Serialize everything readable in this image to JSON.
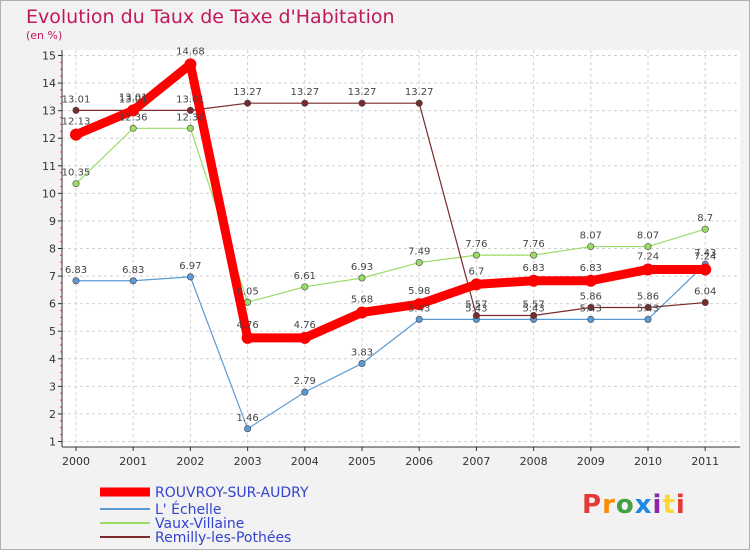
{
  "header": {
    "title": "Evolution du Taux de Taxe d'Habitation",
    "subtitle": "(en %)"
  },
  "logo": {
    "text": "Proxiti",
    "colors": [
      "#e53935",
      "#fb8c00",
      "#43a047",
      "#1e88e5",
      "#8e24aa",
      "#fdd835",
      "#e53935"
    ]
  },
  "colors": {
    "grid": "#d0d0d0",
    "title": "#c2185b",
    "legend_text": "#3344cc"
  },
  "chart_data": {
    "type": "line",
    "title": "Evolution du Taux de Taxe d'Habitation",
    "ylabel": "(en %)",
    "xlabel": "",
    "categories": [
      "2000",
      "2001",
      "2002",
      "2003",
      "2004",
      "2005",
      "2006",
      "2007",
      "2008",
      "2009",
      "2010",
      "2011"
    ],
    "yticks": [
      1,
      2,
      3,
      4,
      5,
      6,
      7,
      8,
      9,
      10,
      11,
      12,
      13,
      14,
      15
    ],
    "ylim": [
      0.8,
      15.2
    ],
    "grid": true,
    "legend_position": "bottom-left",
    "series": [
      {
        "name": "ROUVROY-SUR-AUDRY",
        "color": "#ff0000",
        "values": [
          12.13,
          13.01,
          14.68,
          4.76,
          4.76,
          5.68,
          5.98,
          6.7,
          6.83,
          6.83,
          7.24,
          7.24
        ],
        "labels": [
          "12.13",
          "13.01",
          "14.68",
          "4.76",
          "4.76",
          "5.68",
          "5.98",
          "6.7",
          "6.83",
          "6.83",
          "7.24",
          "7.24"
        ]
      },
      {
        "name": "L' Échelle",
        "color": "#5b9bd5",
        "values": [
          6.83,
          6.83,
          6.97,
          1.46,
          2.79,
          3.83,
          5.43,
          5.43,
          5.43,
          5.43,
          5.43,
          7.43
        ],
        "labels": [
          "6.83",
          "6.83",
          "6.97",
          "1.46",
          "2.79",
          "3.83",
          "5.43",
          "5.43",
          "5.43",
          "5.43",
          "5.43",
          "7.43"
        ]
      },
      {
        "name": "Vaux-Villaine",
        "color": "#99dd66",
        "values": [
          10.35,
          12.36,
          12.36,
          6.05,
          6.61,
          6.93,
          7.49,
          7.76,
          7.76,
          8.07,
          8.07,
          8.7
        ],
        "labels": [
          "10.35",
          "12.36",
          "12.36",
          "6.05",
          "6.61",
          "6.93",
          "7.49",
          "7.76",
          "7.76",
          "8.07",
          "8.07",
          "8.7"
        ]
      },
      {
        "name": "Remilly-les-Pothées",
        "color": "#7a2a2a",
        "values": [
          13.01,
          13.01,
          13.01,
          13.27,
          13.27,
          13.27,
          13.27,
          5.57,
          5.57,
          5.86,
          5.86,
          6.04
        ],
        "labels": [
          "13.01",
          "13.01",
          "13.01",
          "13.27",
          "13.27",
          "13.27",
          "13.27",
          "5.57",
          "5.57",
          "5.86",
          "5.86",
          "6.04"
        ]
      }
    ]
  }
}
